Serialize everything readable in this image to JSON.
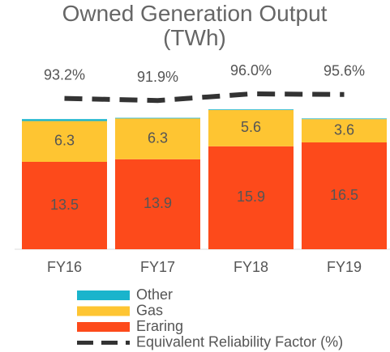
{
  "chart_data": {
    "type": "bar",
    "stacked": true,
    "title": "Owned Generation Output (TWh)",
    "categories": [
      "FY16",
      "FY17",
      "FY18",
      "FY19"
    ],
    "ylim": [
      0,
      38.5
    ],
    "y2lim": [
      0,
      154
    ],
    "series": [
      {
        "name": "Eraring",
        "color": "#fd4a1b",
        "values": [
          13.5,
          13.9,
          15.9,
          16.5
        ]
      },
      {
        "name": "Gas",
        "color": "#fec532",
        "values": [
          6.3,
          6.3,
          5.6,
          3.6
        ]
      },
      {
        "name": "Other",
        "color": "#1ab4cc",
        "values": [
          0.3,
          0.1,
          0.1,
          0.1
        ]
      },
      {
        "name": "Equivalent Reliability Factor (%)",
        "type": "line",
        "axis": "y2",
        "color": "#333333",
        "dashed": true,
        "values": [
          93.2,
          91.9,
          96.0,
          95.6
        ],
        "value_labels": [
          "93.2%",
          "91.9%",
          "96.0%",
          "95.6%"
        ]
      }
    ],
    "legend_order": [
      2,
      1,
      0,
      3
    ]
  }
}
